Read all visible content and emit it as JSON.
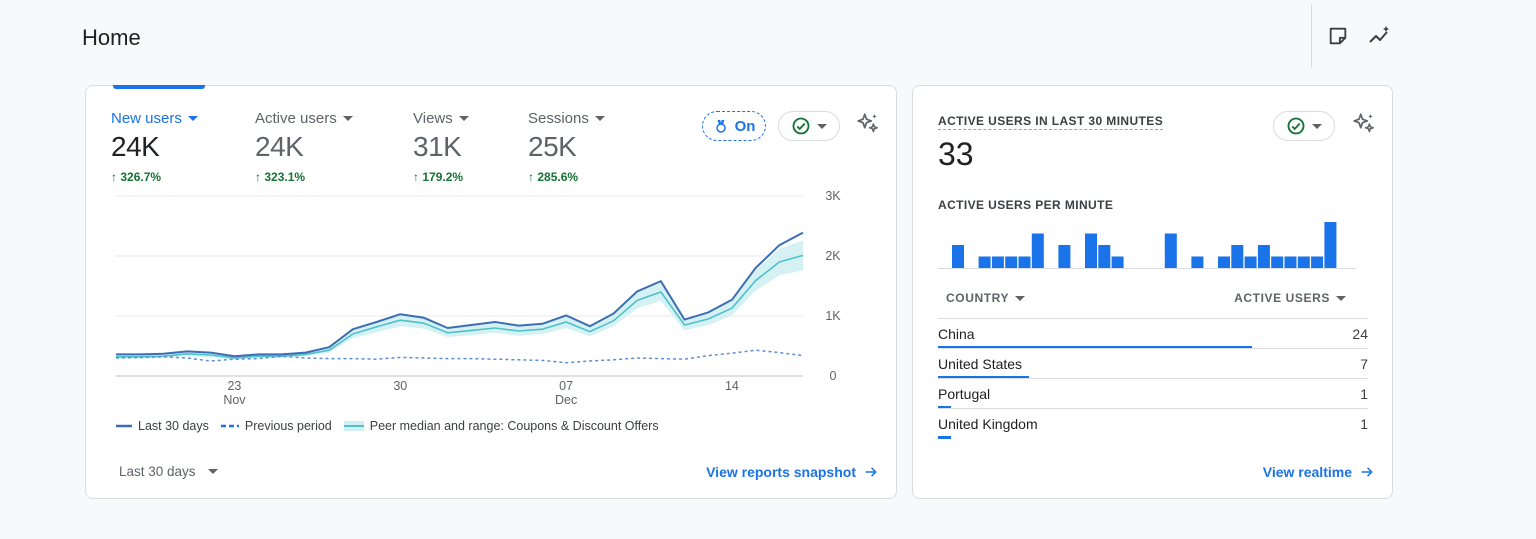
{
  "header": {
    "title": "Home",
    "icons": [
      "notes-icon",
      "insights-icon"
    ]
  },
  "main_card": {
    "metrics": [
      {
        "label": "New users",
        "value": "24K",
        "change": "326.7%",
        "active": true
      },
      {
        "label": "Active users",
        "value": "24K",
        "change": "323.1%",
        "active": false
      },
      {
        "label": "Views",
        "value": "31K",
        "change": "179.2%",
        "active": false
      },
      {
        "label": "Sessions",
        "value": "25K",
        "change": "285.6%",
        "active": false
      }
    ],
    "on_label": "On",
    "range_label": "Last 30 days",
    "link_label": "View reports snapshot",
    "legend": {
      "current": "Last 30 days",
      "previous": "Previous period",
      "peer": "Peer median and range: Coupons & Discount Offers"
    }
  },
  "chart_data": {
    "type": "line",
    "x_ticks": [
      {
        "index": 5,
        "day": "23",
        "month": "Nov"
      },
      {
        "index": 12,
        "day": "30",
        "month": ""
      },
      {
        "index": 19,
        "day": "07",
        "month": "Dec"
      },
      {
        "index": 26,
        "day": "14",
        "month": ""
      }
    ],
    "y_ticks": [
      "0",
      "1K",
      "2K",
      "3K"
    ],
    "ylim": [
      0,
      3000
    ],
    "series": [
      {
        "values": [
          360,
          360,
          370,
          410,
          390,
          330,
          360,
          360,
          390,
          480,
          780,
          900,
          1030,
          970,
          800,
          850,
          900,
          840,
          870,
          1010,
          830,
          1040,
          1410,
          1580,
          940,
          1060,
          1270,
          1800,
          2180,
          2390
        ]
      },
      {
        "values": [
          300,
          310,
          320,
          300,
          250,
          280,
          290,
          330,
          300,
          290,
          290,
          280,
          310,
          300,
          290,
          290,
          280,
          270,
          260,
          220,
          250,
          270,
          300,
          290,
          280,
          340,
          380,
          430,
          390,
          340
        ]
      }
    ],
    "peer": {
      "median": [
        320,
        320,
        330,
        370,
        350,
        300,
        330,
        330,
        360,
        430,
        700,
        820,
        930,
        880,
        720,
        760,
        800,
        750,
        780,
        900,
        740,
        920,
        1260,
        1400,
        850,
        950,
        1130,
        1590,
        1900,
        2010
      ],
      "low": [
        290,
        290,
        300,
        330,
        310,
        270,
        300,
        300,
        330,
        390,
        630,
        730,
        830,
        790,
        650,
        680,
        720,
        670,
        700,
        800,
        660,
        830,
        1130,
        1250,
        760,
        850,
        1010,
        1420,
        1680,
        1760
      ],
      "high": [
        350,
        350,
        360,
        410,
        390,
        330,
        360,
        360,
        390,
        470,
        770,
        910,
        1030,
        970,
        790,
        840,
        880,
        830,
        860,
        1000,
        820,
        1010,
        1390,
        1550,
        940,
        1050,
        1250,
        1760,
        2120,
        2260
      ]
    }
  },
  "realtime_card": {
    "title": "ACTIVE USERS IN LAST 30 MINUTES",
    "value": "33",
    "sub_title": "ACTIVE USERS PER MINUTE",
    "per_minute": [
      2,
      0,
      1,
      1,
      1,
      1,
      3,
      0,
      2,
      0,
      3,
      2,
      1,
      0,
      0,
      0,
      3,
      0,
      1,
      0,
      1,
      2,
      1,
      2,
      1,
      1,
      1,
      1,
      4
    ],
    "col_country": "COUNTRY",
    "col_users": "ACTIVE USERS",
    "rows": [
      {
        "country": "China",
        "users": "24",
        "fraction": 1.0
      },
      {
        "country": "United States",
        "users": "7",
        "fraction": 0.29
      },
      {
        "country": "Portugal",
        "users": "1",
        "fraction": 0.04
      },
      {
        "country": "United Kingdom",
        "users": "1",
        "fraction": 0.04
      }
    ],
    "link_label": "View realtime"
  },
  "colors": {
    "accent": "#1a73e8",
    "line_current": "#3c6eb4",
    "line_previous": "#5a8fd6",
    "peer_line": "#4fc1c9",
    "peer_band": "#d2f0f2",
    "positive": "#137333"
  }
}
